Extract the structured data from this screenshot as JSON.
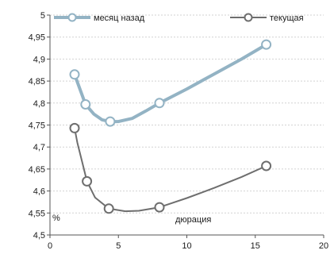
{
  "chart_data": {
    "type": "line",
    "title": "",
    "xlabel": "дюрация",
    "ylabel": "%",
    "xlim": [
      0,
      20
    ],
    "ylim": [
      4.5,
      5
    ],
    "x_ticks": [
      0,
      5,
      10,
      15,
      20
    ],
    "x_tick_labels": [
      "0",
      "5",
      "10",
      "15",
      "20"
    ],
    "y_ticks": [
      4.5,
      4.55,
      4.6,
      4.65,
      4.7,
      4.75,
      4.8,
      4.85,
      4.9,
      4.95,
      5
    ],
    "y_tick_labels": [
      "4,5",
      "4,55",
      "4,6",
      "4,65",
      "4,7",
      "4,75",
      "4,8",
      "4,85",
      "4,9",
      "4,95",
      "5"
    ],
    "grid": "horizontal",
    "legend_position": "top",
    "series": [
      {
        "name": "месяц назад",
        "color": "#93b3c4",
        "points": [
          [
            1.8,
            4.865
          ],
          [
            2.6,
            4.797
          ],
          [
            4.4,
            4.758
          ],
          [
            8.0,
            4.8
          ],
          [
            15.8,
            4.933
          ]
        ],
        "curve": [
          [
            1.8,
            4.865
          ],
          [
            2.6,
            4.797
          ],
          [
            3.2,
            4.775
          ],
          [
            3.8,
            4.762
          ],
          [
            4.4,
            4.758
          ],
          [
            5.0,
            4.758
          ],
          [
            6.0,
            4.765
          ],
          [
            7.0,
            4.782
          ],
          [
            8.0,
            4.8
          ],
          [
            10.0,
            4.832
          ],
          [
            12.0,
            4.866
          ],
          [
            14.0,
            4.9
          ],
          [
            15.8,
            4.933
          ]
        ]
      },
      {
        "name": "текущая",
        "color": "#6e6e6e",
        "points": [
          [
            1.8,
            4.743
          ],
          [
            2.7,
            4.622
          ],
          [
            4.3,
            4.56
          ],
          [
            8.0,
            4.563
          ],
          [
            15.8,
            4.657
          ]
        ],
        "curve": [
          [
            1.8,
            4.743
          ],
          [
            2.0,
            4.71
          ],
          [
            2.4,
            4.66
          ],
          [
            2.7,
            4.622
          ],
          [
            3.3,
            4.585
          ],
          [
            4.3,
            4.56
          ],
          [
            5.5,
            4.554
          ],
          [
            6.5,
            4.555
          ],
          [
            8.0,
            4.563
          ],
          [
            10.0,
            4.584
          ],
          [
            12.0,
            4.607
          ],
          [
            14.0,
            4.632
          ],
          [
            15.8,
            4.657
          ]
        ]
      }
    ]
  }
}
